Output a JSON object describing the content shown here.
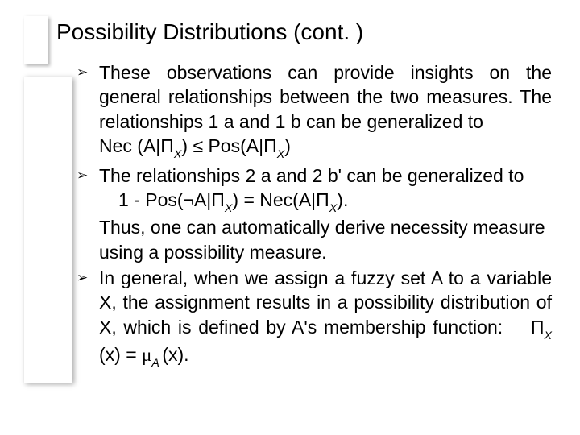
{
  "title": "Possibility Distributions (cont. )",
  "items": [
    {
      "type": "justify",
      "lines": [
        "These observations can provide insights on the general relationships between the two measures. The relationships 1 a and 1 b can be generalized to"
      ],
      "formula": "Nec (A|Π<sub class='sub'>X</sub>) ≤  Pos(A|Π<sub class='sub'>X</sub>)"
    },
    {
      "type": "plain",
      "lines": [
        "The relationships 2 a and 2 b' can be generalized to"
      ],
      "formula_indent": "1 - Pos(¬A|Π<sub class='sub'>X</sub>) = Nec(A|Π<sub class='sub'>X</sub>).",
      "tail": "Thus, one can automatically derive necessity measure using a possibility measure."
    },
    {
      "type": "justify",
      "lines": [
        "In general, when we assign a fuzzy set A to a variable X, the assignment results in a possibility distribution of X, which is defined by A's membership function: &nbsp;&nbsp; Π<sub class='sub'>X </sub>(x) = <span class='serif'>μ</span><sub class='sub'>A </sub>(x)."
      ]
    }
  ],
  "bullet_glyph": "➢",
  "colors": {
    "text": "#000000",
    "background": "#ffffff"
  }
}
